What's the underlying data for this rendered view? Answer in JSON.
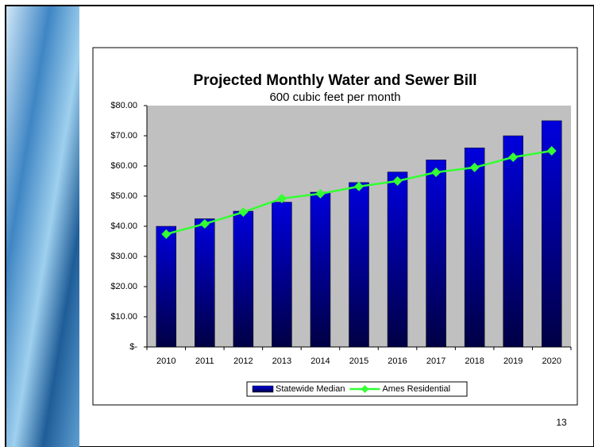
{
  "chart_data": {
    "type": "bar_line",
    "title": "Projected Monthly Water and Sewer Bill",
    "subtitle": "600 cubic feet per month",
    "categories": [
      "2010",
      "2011",
      "2012",
      "2013",
      "2014",
      "2015",
      "2016",
      "2017",
      "2018",
      "2019",
      "2020"
    ],
    "series": [
      {
        "name": "Statewide Median",
        "type": "bar",
        "color": "#0000dd",
        "values": [
          40,
          42.5,
          45,
          48,
          51.3,
          54.5,
          58,
          62,
          66,
          70,
          75
        ]
      },
      {
        "name": "Ames Residential",
        "type": "line",
        "color": "#33ff33",
        "values": [
          37.4,
          40.8,
          44.7,
          49.2,
          50.8,
          53.2,
          55,
          57.9,
          59.5,
          62.9,
          65
        ]
      }
    ],
    "ylim": [
      0,
      80
    ],
    "yticks": [
      {
        "value": 0,
        "label": "$-"
      },
      {
        "value": 10,
        "label": "$10.00"
      },
      {
        "value": 20,
        "label": "$20.00"
      },
      {
        "value": 30,
        "label": "$30.00"
      },
      {
        "value": 40,
        "label": "$40.00"
      },
      {
        "value": 50,
        "label": "$50.00"
      },
      {
        "value": 60,
        "label": "$60.00"
      },
      {
        "value": 70,
        "label": "$70.00"
      },
      {
        "value": 80,
        "label": "$80.00"
      }
    ],
    "grid": false,
    "legend": "bottom"
  },
  "page_number": "13"
}
